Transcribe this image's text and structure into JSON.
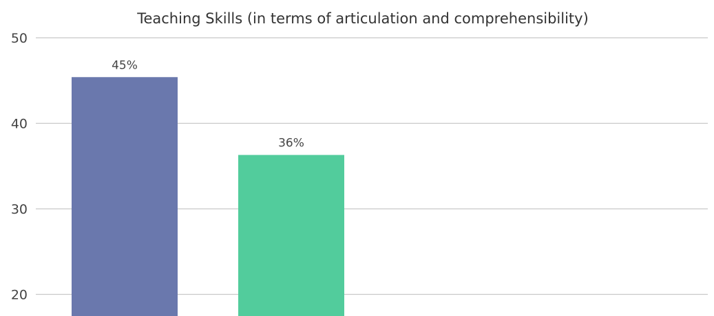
{
  "chart_data": {
    "type": "bar",
    "title": "Teaching Skills (in terms of articulation and comprehensibility)",
    "xlabel": "",
    "ylabel": "",
    "ylim": [
      20,
      50
    ],
    "yticks": [
      20,
      30,
      40,
      50
    ],
    "grid": true,
    "categories": [
      "",
      ""
    ],
    "values": [
      45.4,
      36.3
    ],
    "data_labels": [
      "45%",
      "36%"
    ],
    "colors": [
      "#6a78ad",
      "#52cc9c"
    ]
  }
}
